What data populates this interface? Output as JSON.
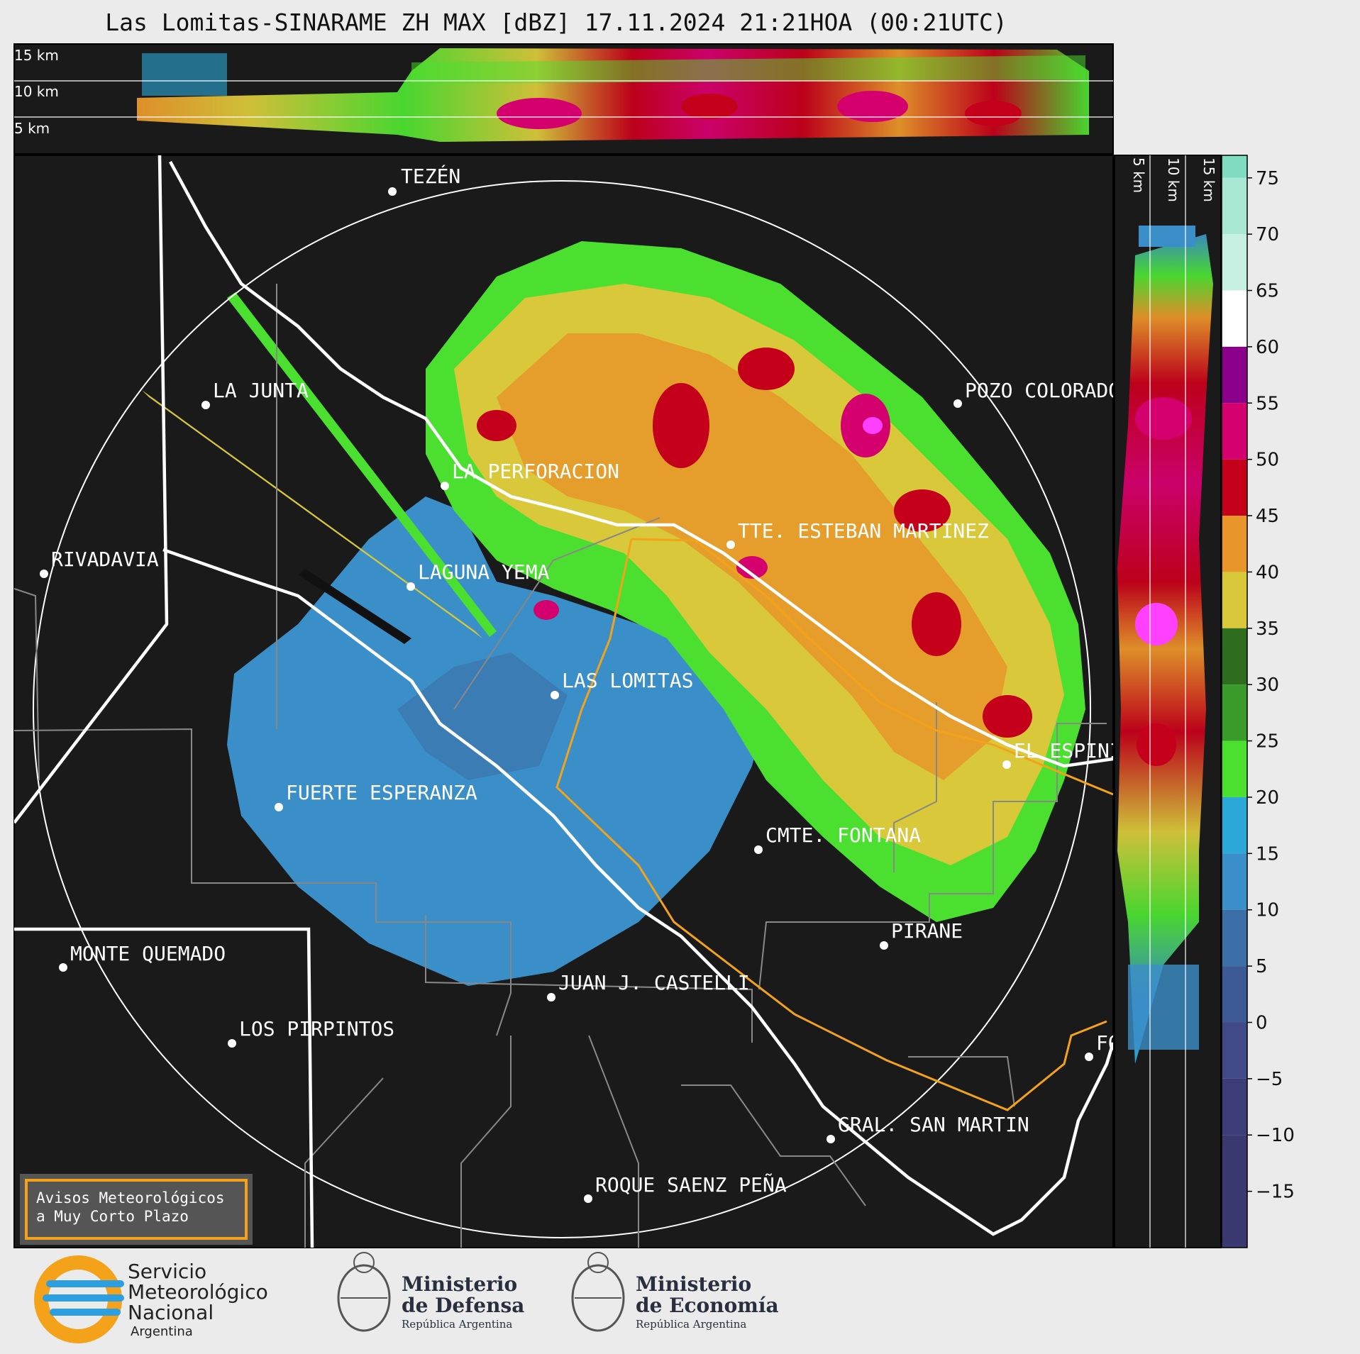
{
  "header": {
    "title": "Las Lomitas-SINARAME ZH MAX [dBZ] 17.11.2024 21:21HOA (00:21UTC)"
  },
  "top_section": {
    "height_labels": [
      "15 km",
      "10 km",
      "5 km"
    ]
  },
  "side_section": {
    "height_labels": [
      "5 km",
      "10 km",
      "15 km"
    ]
  },
  "places": [
    {
      "name": "TEZÉN"
    },
    {
      "name": "LA JUNTA"
    },
    {
      "name": "POZO COLORADO"
    },
    {
      "name": "LA PERFORACION"
    },
    {
      "name": "TTE. ESTEBAN MARTINEZ"
    },
    {
      "name": "RIVADAVIA"
    },
    {
      "name": "LAGUNA YEMA"
    },
    {
      "name": "LAS LOMITAS"
    },
    {
      "name": "EL ESPINILLO"
    },
    {
      "name": "FUERTE ESPERANZA"
    },
    {
      "name": "CMTE. FONTANA"
    },
    {
      "name": "PIRANE"
    },
    {
      "name": "MONTE QUEMADO"
    },
    {
      "name": "JUAN J. CASTELLI"
    },
    {
      "name": "LOS PIRPINTOS"
    },
    {
      "name": "GRAL. SAN MARTIN"
    },
    {
      "name": "ROQUE SAENZ PEÑA"
    },
    {
      "name": "FORMOSA"
    }
  ],
  "colorbar": {
    "unit": "dBZ",
    "ticks": [
      "75",
      "70",
      "65",
      "60",
      "55",
      "50",
      "45",
      "40",
      "35",
      "30",
      "25",
      "20",
      "15",
      "10",
      "5",
      "0",
      "−5",
      "−10",
      "−15"
    ],
    "colors": {
      "75": "#7fdcbf",
      "70": "#a8e8d2",
      "65": "#c8f0e2",
      "60": "#ffffff",
      "55": "#8b008b",
      "50": "#d4006e",
      "45": "#c4001a",
      "40": "#e8952a",
      "35": "#d8c83a",
      "30": "#2e6d1e",
      "25": "#3a9a2a",
      "20": "#4be030",
      "15": "#2ba8d8",
      "10": "#3b8fc8",
      "5": "#3c6fa8",
      "0": "#3e5a96",
      "−5": "#404a88",
      "−10": "#3c3c78"
    }
  },
  "notice_box": {
    "line1": "Avisos Meteorológicos",
    "line2": "a Muy Corto Plazo",
    "border_color": "#f3a21a"
  },
  "footer": {
    "smn": {
      "line1": "Servicio",
      "line2": "Meteorológico",
      "line3": "Nacional",
      "line4": "Argentina"
    },
    "defensa": {
      "line1": "Ministerio",
      "line2": "de Defensa",
      "line3": "República Argentina"
    },
    "economia": {
      "line1": "Ministerio",
      "line2": "de Economía",
      "line3": "República Argentina"
    }
  }
}
